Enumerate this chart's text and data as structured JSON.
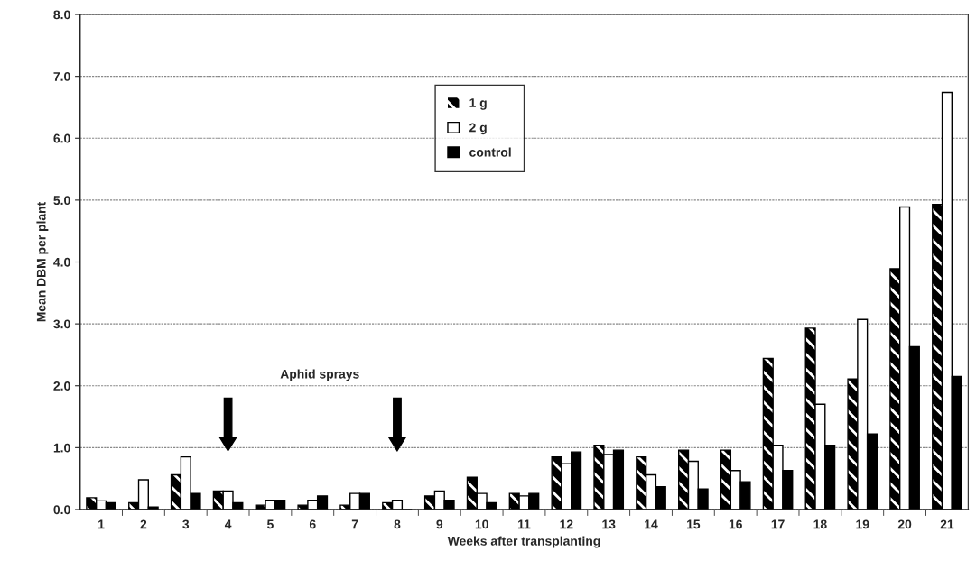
{
  "chart_data": {
    "type": "bar",
    "xlabel": "Weeks after transplanting",
    "ylabel": "Mean DBM per plant",
    "categories": [
      "1",
      "2",
      "3",
      "4",
      "5",
      "6",
      "7",
      "8",
      "9",
      "10",
      "11",
      "12",
      "13",
      "14",
      "15",
      "16",
      "17",
      "18",
      "19",
      "20",
      "21"
    ],
    "series": [
      {
        "name": "1 g",
        "color": "#000000",
        "values": [
          0.19,
          0.11,
          0.56,
          0.3,
          0.07,
          0.07,
          0.07,
          0.11,
          0.22,
          0.52,
          0.26,
          0.85,
          1.04,
          0.85,
          0.96,
          0.96,
          2.44,
          2.93,
          2.11,
          3.89,
          4.93
        ]
      },
      {
        "name": "2 g",
        "color": "#ffffff",
        "values": [
          0.14,
          0.48,
          0.85,
          0.3,
          0.15,
          0.15,
          0.26,
          0.15,
          0.3,
          0.26,
          0.22,
          0.74,
          0.89,
          0.56,
          0.78,
          0.63,
          1.04,
          1.7,
          3.07,
          4.89,
          6.74
        ]
      },
      {
        "name": "control",
        "color": "#000000",
        "values": [
          0.11,
          0.04,
          0.26,
          0.11,
          0.15,
          0.22,
          0.26,
          0.0,
          0.15,
          0.11,
          0.26,
          0.93,
          0.96,
          0.37,
          0.33,
          0.45,
          0.63,
          1.04,
          1.22,
          2.63,
          2.15
        ]
      }
    ],
    "ylim": [
      0,
      8
    ],
    "yticks": [
      {
        "value": 0,
        "label": "0.0"
      },
      {
        "value": 1,
        "label": "1.0"
      },
      {
        "value": 2,
        "label": "2.0"
      },
      {
        "value": 3,
        "label": "3.0"
      },
      {
        "value": 4,
        "label": "4.0"
      },
      {
        "value": 5,
        "label": "5.0"
      },
      {
        "value": 6,
        "label": "6.0"
      },
      {
        "value": 7,
        "label": "7.0"
      },
      {
        "value": 8,
        "label": "8.0"
      }
    ],
    "grid": "y",
    "legend": "top",
    "annotations": [
      "Aphid sprays"
    ]
  }
}
